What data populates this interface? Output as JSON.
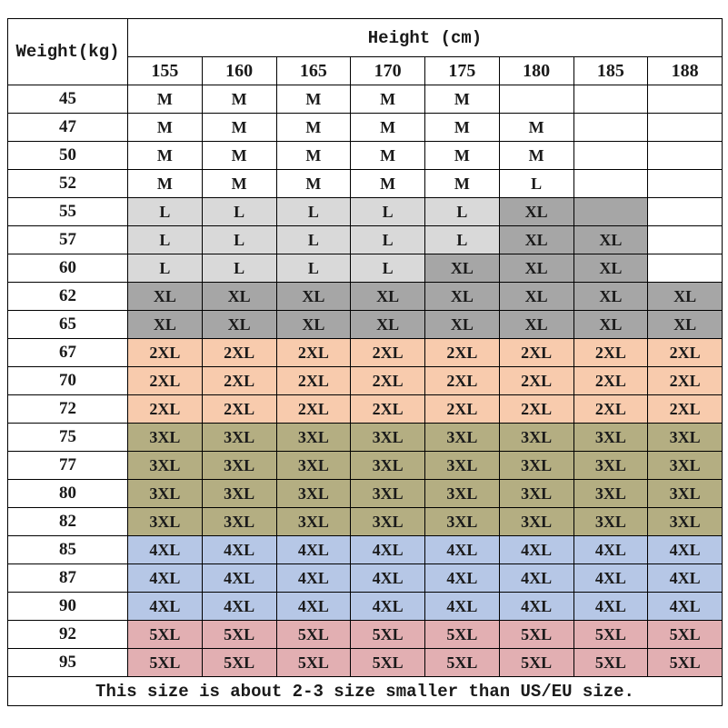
{
  "chart_data": {
    "type": "table",
    "corner_label": "Weight(kg)",
    "title": "Height (cm)",
    "columns": [
      "155",
      "160",
      "165",
      "170",
      "175",
      "180",
      "185",
      "188"
    ],
    "note": "This size is about 2-3 size smaller than US/EU size.",
    "cell_styles": {
      "M": {
        "label": "M",
        "bg": "#ffffff"
      },
      "L-white": {
        "label": "L",
        "bg": "#ffffff"
      },
      "L": {
        "label": "L",
        "bg": "#d9d9d9"
      },
      "XL": {
        "label": "XL",
        "bg": "#a6a6a6"
      },
      "XL-blank": {
        "label": "",
        "bg": "#a6a6a6"
      },
      "2XL": {
        "label": "2XL",
        "bg": "#f8cbad"
      },
      "3XL": {
        "label": "3XL",
        "bg": "#b4ae82"
      },
      "4XL": {
        "label": "4XL",
        "bg": "#b6c7e6"
      },
      "5XL": {
        "label": "5XL",
        "bg": "#e2afb2"
      },
      "blank": {
        "label": "",
        "bg": "#ffffff"
      }
    },
    "rows": [
      {
        "weight": "45",
        "cells": [
          "M",
          "M",
          "M",
          "M",
          "M",
          "blank",
          "blank",
          "blank"
        ]
      },
      {
        "weight": "47",
        "cells": [
          "M",
          "M",
          "M",
          "M",
          "M",
          "M",
          "blank",
          "blank"
        ]
      },
      {
        "weight": "50",
        "cells": [
          "M",
          "M",
          "M",
          "M",
          "M",
          "M",
          "blank",
          "blank"
        ]
      },
      {
        "weight": "52",
        "cells": [
          "M",
          "M",
          "M",
          "M",
          "M",
          "L-white",
          "blank",
          "blank"
        ]
      },
      {
        "weight": "55",
        "cells": [
          "L",
          "L",
          "L",
          "L",
          "L",
          "XL",
          "XL-blank",
          "blank"
        ]
      },
      {
        "weight": "57",
        "cells": [
          "L",
          "L",
          "L",
          "L",
          "L",
          "XL",
          "XL",
          "blank"
        ]
      },
      {
        "weight": "60",
        "cells": [
          "L",
          "L",
          "L",
          "L",
          "XL",
          "XL",
          "XL",
          "blank"
        ]
      },
      {
        "weight": "62",
        "cells": [
          "XL",
          "XL",
          "XL",
          "XL",
          "XL",
          "XL",
          "XL",
          "XL"
        ]
      },
      {
        "weight": "65",
        "cells": [
          "XL",
          "XL",
          "XL",
          "XL",
          "XL",
          "XL",
          "XL",
          "XL"
        ]
      },
      {
        "weight": "67",
        "cells": [
          "2XL",
          "2XL",
          "2XL",
          "2XL",
          "2XL",
          "2XL",
          "2XL",
          "2XL"
        ]
      },
      {
        "weight": "70",
        "cells": [
          "2XL",
          "2XL",
          "2XL",
          "2XL",
          "2XL",
          "2XL",
          "2XL",
          "2XL"
        ]
      },
      {
        "weight": "72",
        "cells": [
          "2XL",
          "2XL",
          "2XL",
          "2XL",
          "2XL",
          "2XL",
          "2XL",
          "2XL"
        ]
      },
      {
        "weight": "75",
        "cells": [
          "3XL",
          "3XL",
          "3XL",
          "3XL",
          "3XL",
          "3XL",
          "3XL",
          "3XL"
        ]
      },
      {
        "weight": "77",
        "cells": [
          "3XL",
          "3XL",
          "3XL",
          "3XL",
          "3XL",
          "3XL",
          "3XL",
          "3XL"
        ]
      },
      {
        "weight": "80",
        "cells": [
          "3XL",
          "3XL",
          "3XL",
          "3XL",
          "3XL",
          "3XL",
          "3XL",
          "3XL"
        ]
      },
      {
        "weight": "82",
        "cells": [
          "3XL",
          "3XL",
          "3XL",
          "3XL",
          "3XL",
          "3XL",
          "3XL",
          "3XL"
        ]
      },
      {
        "weight": "85",
        "cells": [
          "4XL",
          "4XL",
          "4XL",
          "4XL",
          "4XL",
          "4XL",
          "4XL",
          "4XL"
        ]
      },
      {
        "weight": "87",
        "cells": [
          "4XL",
          "4XL",
          "4XL",
          "4XL",
          "4XL",
          "4XL",
          "4XL",
          "4XL"
        ]
      },
      {
        "weight": "90",
        "cells": [
          "4XL",
          "4XL",
          "4XL",
          "4XL",
          "4XL",
          "4XL",
          "4XL",
          "4XL"
        ]
      },
      {
        "weight": "92",
        "cells": [
          "5XL",
          "5XL",
          "5XL",
          "5XL",
          "5XL",
          "5XL",
          "5XL",
          "5XL"
        ]
      },
      {
        "weight": "95",
        "cells": [
          "5XL",
          "5XL",
          "5XL",
          "5XL",
          "5XL",
          "5XL",
          "5XL",
          "5XL"
        ]
      }
    ]
  }
}
